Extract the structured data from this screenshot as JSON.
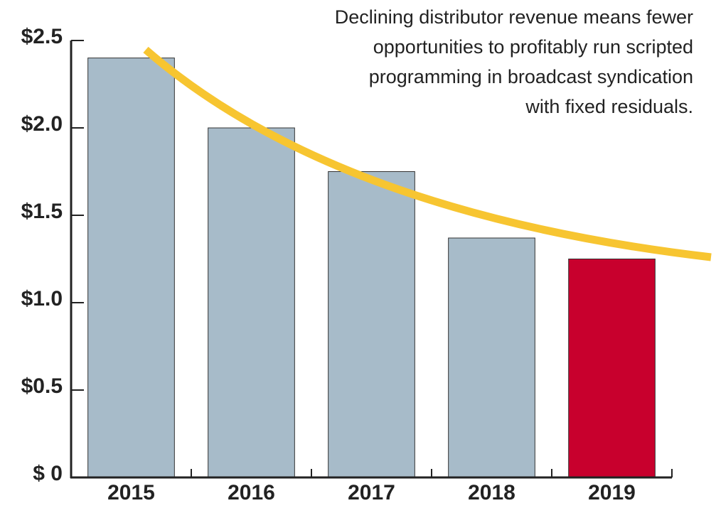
{
  "chart_data": {
    "type": "bar",
    "annotation": [
      "Declining distributor revenue means fewer",
      "opportunities to profitably run scripted",
      "programming in broadcast syndication",
      "with fixed residuals."
    ],
    "categories": [
      "2015",
      "2016",
      "2017",
      "2018",
      "2019"
    ],
    "values": [
      2.4,
      2.0,
      1.75,
      1.37,
      1.25
    ],
    "colors": [
      "#a7bbc9",
      "#a7bbc9",
      "#a7bbc9",
      "#a7bbc9",
      "#c8002d"
    ],
    "ylim": [
      0,
      2.5
    ],
    "yticks": [
      {
        "value": 0,
        "label": "$ 0"
      },
      {
        "value": 0.5,
        "label": "$0.5"
      },
      {
        "value": 1.0,
        "label": "$1.0"
      },
      {
        "value": 1.5,
        "label": "$1.5"
      },
      {
        "value": 2.0,
        "label": "$2.0"
      },
      {
        "value": 2.5,
        "label": "$2.5"
      }
    ]
  }
}
